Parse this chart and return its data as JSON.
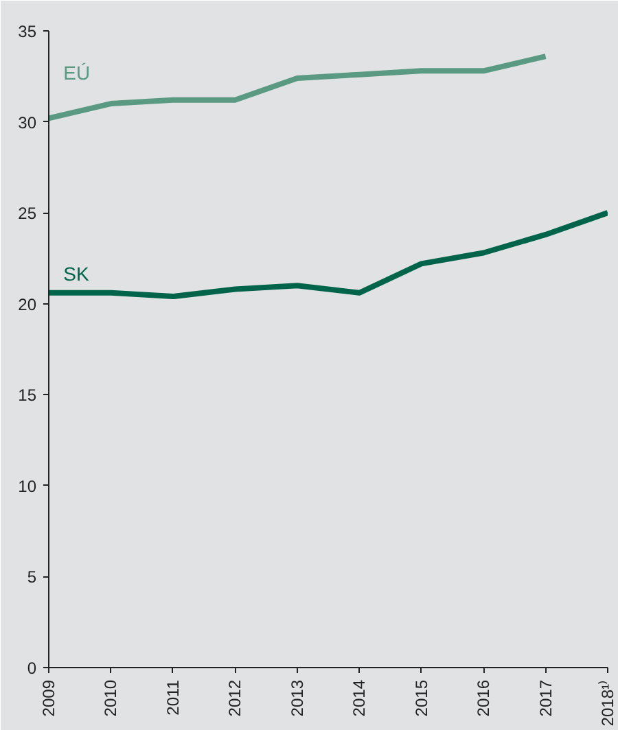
{
  "chart_data": {
    "type": "line",
    "x": [
      2009,
      2010,
      2011,
      2012,
      2013,
      2014,
      2015,
      2016,
      2017,
      2018
    ],
    "series": [
      {
        "name": "EÚ",
        "color": "#5a9a82",
        "values": [
          30.2,
          31.0,
          31.2,
          31.2,
          32.4,
          32.6,
          32.8,
          32.8,
          33.6,
          null
        ]
      },
      {
        "name": "SK",
        "color": "#00644a",
        "values": [
          20.6,
          20.6,
          20.4,
          20.8,
          21.0,
          20.6,
          22.2,
          22.8,
          23.8,
          25.0
        ]
      }
    ],
    "xlim": [
      2009,
      2018
    ],
    "xticks": [
      2009,
      2010,
      2011,
      2012,
      2013,
      2014,
      2015,
      2016,
      2017,
      {
        "value": 2018,
        "label": "2018¹⁾"
      }
    ],
    "ylim": [
      0,
      35
    ],
    "yticks": [
      0,
      5,
      10,
      15,
      20,
      25,
      30,
      35
    ],
    "marker": "none",
    "line_style": "solid"
  }
}
